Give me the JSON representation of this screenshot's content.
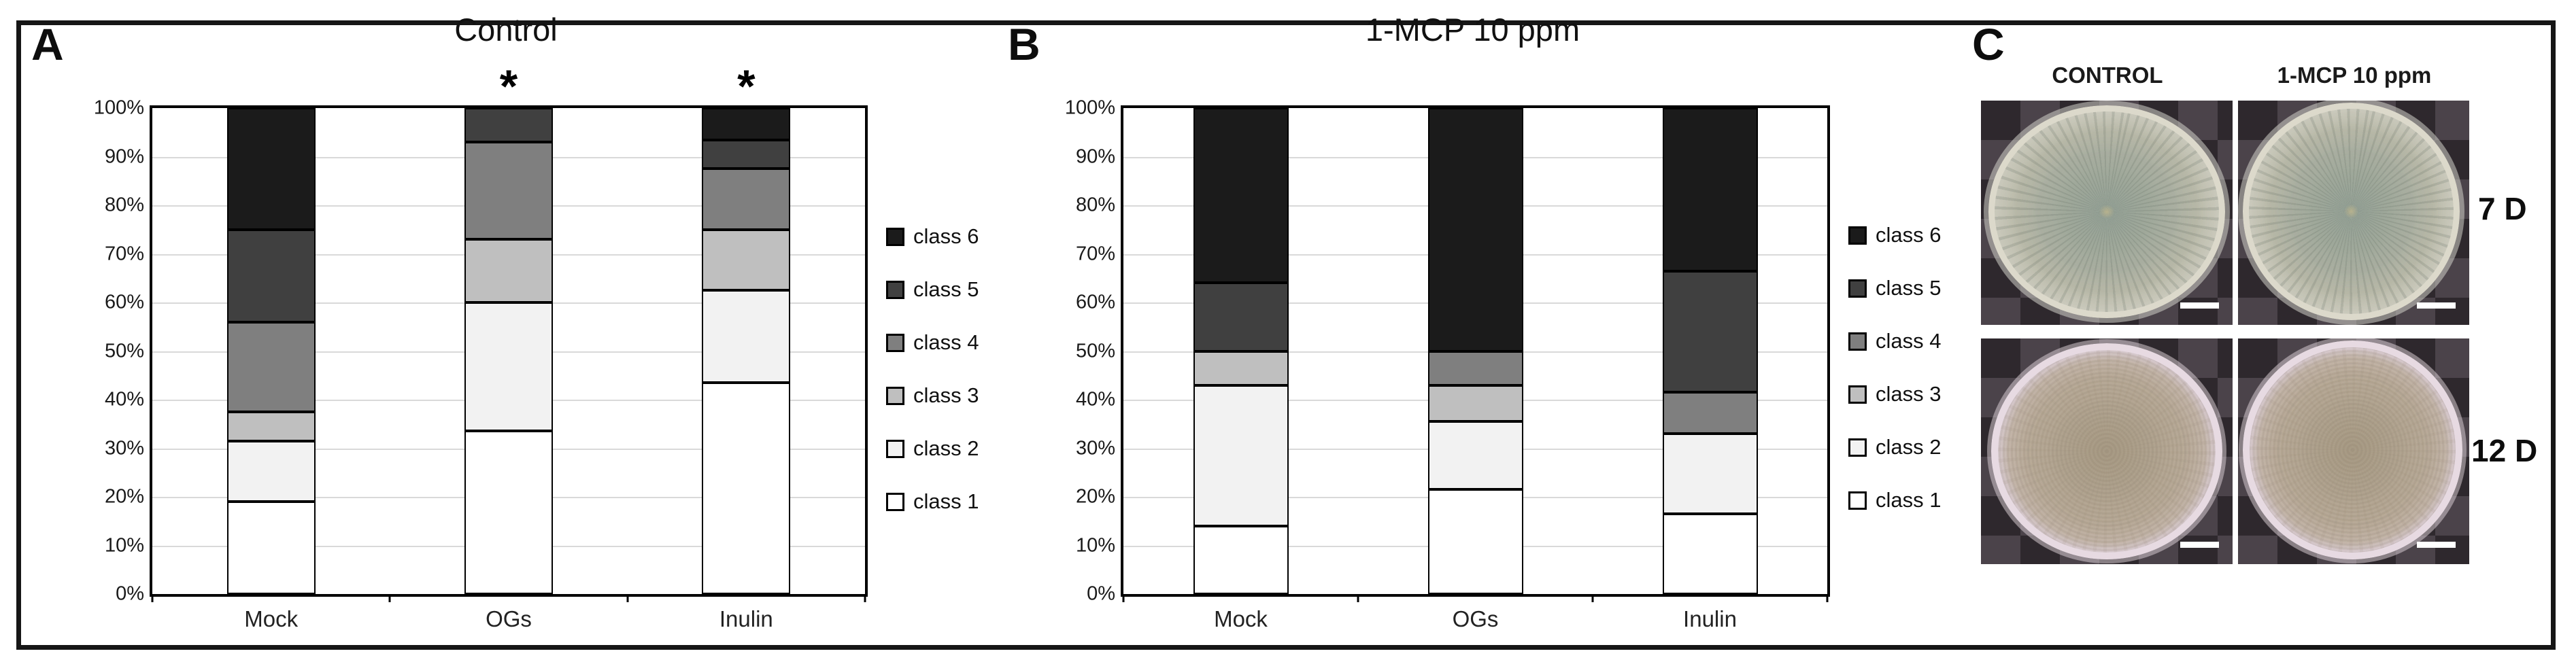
{
  "panels": {
    "a": {
      "letter": "A",
      "title": "Control"
    },
    "b": {
      "letter": "B",
      "title": "1-MCP 10 ppm"
    },
    "c": {
      "letter": "C",
      "column_headers": [
        "CONTROL",
        "1-MCP 10 ppm"
      ],
      "row_labels": [
        "7 D",
        "12 D"
      ]
    }
  },
  "legend": {
    "entries": [
      {
        "label": "class 6",
        "color": "#1b1b1b"
      },
      {
        "label": "class 5",
        "color": "#404040"
      },
      {
        "label": "class 4",
        "color": "#7f7f7f"
      },
      {
        "label": "class 3",
        "color": "#bfbfbf"
      },
      {
        "label": "class 2",
        "color": "#f2f2f2"
      },
      {
        "label": "class 1",
        "color": "#ffffff"
      }
    ]
  },
  "chart_data": [
    {
      "type": "bar",
      "stacked": true,
      "panel": "A",
      "title": "Control",
      "categories": [
        "Mock",
        "OGs",
        "Inulin"
      ],
      "series": [
        {
          "name": "class 1",
          "color": "#ffffff",
          "values": [
            19,
            33.5,
            43.5
          ]
        },
        {
          "name": "class 2",
          "color": "#f2f2f2",
          "values": [
            12.5,
            26.5,
            19
          ]
        },
        {
          "name": "class 3",
          "color": "#bfbfbf",
          "values": [
            6,
            13,
            12.5
          ]
        },
        {
          "name": "class 4",
          "color": "#7f7f7f",
          "values": [
            18.5,
            20,
            12.5
          ]
        },
        {
          "name": "class 5",
          "color": "#404040",
          "values": [
            19,
            7,
            6
          ]
        },
        {
          "name": "class 6",
          "color": "#1b1b1b",
          "values": [
            25,
            0,
            6.5
          ]
        }
      ],
      "significance": [
        "",
        "*",
        "*"
      ],
      "y_ticks": [
        "0%",
        "10%",
        "20%",
        "30%",
        "40%",
        "50%",
        "60%",
        "70%",
        "80%",
        "90%",
        "100%"
      ],
      "ylim": [
        0,
        100
      ],
      "grid": true,
      "legend_position": "right"
    },
    {
      "type": "bar",
      "stacked": true,
      "panel": "B",
      "title": "1-MCP 10 ppm",
      "categories": [
        "Mock",
        "OGs",
        "Inulin"
      ],
      "series": [
        {
          "name": "class 1",
          "color": "#ffffff",
          "values": [
            14,
            21.5,
            16.5
          ]
        },
        {
          "name": "class 2",
          "color": "#f2f2f2",
          "values": [
            29,
            14,
            16.5
          ]
        },
        {
          "name": "class 3",
          "color": "#bfbfbf",
          "values": [
            7,
            7.5,
            0
          ]
        },
        {
          "name": "class 4",
          "color": "#7f7f7f",
          "values": [
            0,
            7,
            8.5
          ]
        },
        {
          "name": "class 5",
          "color": "#404040",
          "values": [
            14,
            0,
            25
          ]
        },
        {
          "name": "class 6",
          "color": "#1b1b1b",
          "values": [
            36,
            50,
            33.5
          ]
        }
      ],
      "significance": [
        "",
        "",
        ""
      ],
      "y_ticks": [
        "0%",
        "10%",
        "20%",
        "30%",
        "40%",
        "50%",
        "60%",
        "70%",
        "80%",
        "90%",
        "100%"
      ],
      "ylim": [
        0,
        100
      ],
      "grid": true,
      "legend_position": "right"
    }
  ]
}
